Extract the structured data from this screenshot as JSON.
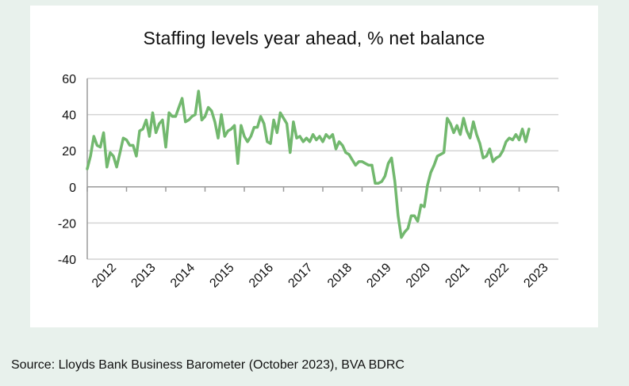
{
  "chart_data": {
    "type": "line",
    "title": "Staffing levels year ahead, % net balance",
    "xlabel": "",
    "ylabel": "",
    "ylim": [
      -40,
      60
    ],
    "yticks": [
      -40,
      -20,
      0,
      20,
      40,
      60
    ],
    "year_labels": [
      "2012",
      "2013",
      "2014",
      "2015",
      "2016",
      "2017",
      "2018",
      "2019",
      "2020",
      "2021",
      "2022",
      "2023"
    ],
    "x_start": "2012-01",
    "frequency": "monthly",
    "grid": "horizontal",
    "series": [
      {
        "color": "#72b86e",
        "values": [
          10,
          17,
          28,
          23,
          22,
          30,
          11,
          19,
          17,
          11,
          19,
          27,
          26,
          23,
          23,
          17,
          31,
          32,
          37,
          28,
          41,
          30,
          35,
          37,
          22,
          41,
          39,
          39,
          44,
          49,
          36,
          37,
          39,
          40,
          53,
          37,
          39,
          44,
          42,
          36,
          27,
          40,
          28,
          31,
          32,
          34,
          13,
          34,
          28,
          25,
          28,
          33,
          33,
          39,
          35,
          25,
          24,
          37,
          30,
          41,
          38,
          35,
          19,
          36,
          27,
          28,
          25,
          27,
          25,
          29,
          26,
          28,
          25,
          29,
          27,
          29,
          21,
          25,
          23,
          19,
          18,
          15,
          12,
          14,
          14,
          13,
          12,
          12,
          2,
          2,
          3,
          6,
          13,
          16,
          3,
          -16,
          -28,
          -25,
          -23,
          -16,
          -16,
          -19,
          -10,
          -11,
          1,
          8,
          12,
          17,
          18,
          19,
          38,
          35,
          30,
          34,
          29,
          38,
          31,
          27,
          36,
          29,
          24,
          16,
          17,
          21,
          14,
          16,
          17,
          20,
          25,
          27,
          26,
          29,
          26,
          32,
          25,
          32
        ]
      }
    ]
  },
  "source_text": "Source: Lloyds Bank Business Barometer (October 2023), BVA BDRC"
}
